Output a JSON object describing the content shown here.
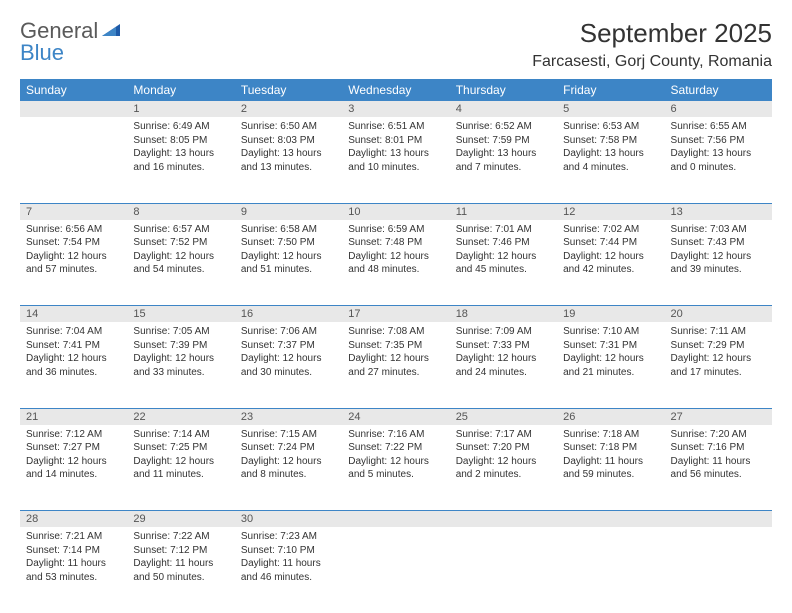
{
  "logo": {
    "text1": "General",
    "text2": "Blue"
  },
  "title": "September 2025",
  "location": "Farcasesti, Gorj County, Romania",
  "colors": {
    "header_bg": "#3d85c6",
    "header_fg": "#ffffff",
    "daynum_bg": "#e8e8e8",
    "text": "#333333",
    "logo_gray": "#5a5a5a",
    "logo_blue": "#3d85c6"
  },
  "weekdays": [
    "Sunday",
    "Monday",
    "Tuesday",
    "Wednesday",
    "Thursday",
    "Friday",
    "Saturday"
  ],
  "weeks": [
    {
      "nums": [
        "",
        "1",
        "2",
        "3",
        "4",
        "5",
        "6"
      ],
      "cells": [
        null,
        {
          "sr": "Sunrise: 6:49 AM",
          "ss": "Sunset: 8:05 PM",
          "dl": "Daylight: 13 hours and 16 minutes."
        },
        {
          "sr": "Sunrise: 6:50 AM",
          "ss": "Sunset: 8:03 PM",
          "dl": "Daylight: 13 hours and 13 minutes."
        },
        {
          "sr": "Sunrise: 6:51 AM",
          "ss": "Sunset: 8:01 PM",
          "dl": "Daylight: 13 hours and 10 minutes."
        },
        {
          "sr": "Sunrise: 6:52 AM",
          "ss": "Sunset: 7:59 PM",
          "dl": "Daylight: 13 hours and 7 minutes."
        },
        {
          "sr": "Sunrise: 6:53 AM",
          "ss": "Sunset: 7:58 PM",
          "dl": "Daylight: 13 hours and 4 minutes."
        },
        {
          "sr": "Sunrise: 6:55 AM",
          "ss": "Sunset: 7:56 PM",
          "dl": "Daylight: 13 hours and 0 minutes."
        }
      ]
    },
    {
      "nums": [
        "7",
        "8",
        "9",
        "10",
        "11",
        "12",
        "13"
      ],
      "cells": [
        {
          "sr": "Sunrise: 6:56 AM",
          "ss": "Sunset: 7:54 PM",
          "dl": "Daylight: 12 hours and 57 minutes."
        },
        {
          "sr": "Sunrise: 6:57 AM",
          "ss": "Sunset: 7:52 PM",
          "dl": "Daylight: 12 hours and 54 minutes."
        },
        {
          "sr": "Sunrise: 6:58 AM",
          "ss": "Sunset: 7:50 PM",
          "dl": "Daylight: 12 hours and 51 minutes."
        },
        {
          "sr": "Sunrise: 6:59 AM",
          "ss": "Sunset: 7:48 PM",
          "dl": "Daylight: 12 hours and 48 minutes."
        },
        {
          "sr": "Sunrise: 7:01 AM",
          "ss": "Sunset: 7:46 PM",
          "dl": "Daylight: 12 hours and 45 minutes."
        },
        {
          "sr": "Sunrise: 7:02 AM",
          "ss": "Sunset: 7:44 PM",
          "dl": "Daylight: 12 hours and 42 minutes."
        },
        {
          "sr": "Sunrise: 7:03 AM",
          "ss": "Sunset: 7:43 PM",
          "dl": "Daylight: 12 hours and 39 minutes."
        }
      ]
    },
    {
      "nums": [
        "14",
        "15",
        "16",
        "17",
        "18",
        "19",
        "20"
      ],
      "cells": [
        {
          "sr": "Sunrise: 7:04 AM",
          "ss": "Sunset: 7:41 PM",
          "dl": "Daylight: 12 hours and 36 minutes."
        },
        {
          "sr": "Sunrise: 7:05 AM",
          "ss": "Sunset: 7:39 PM",
          "dl": "Daylight: 12 hours and 33 minutes."
        },
        {
          "sr": "Sunrise: 7:06 AM",
          "ss": "Sunset: 7:37 PM",
          "dl": "Daylight: 12 hours and 30 minutes."
        },
        {
          "sr": "Sunrise: 7:08 AM",
          "ss": "Sunset: 7:35 PM",
          "dl": "Daylight: 12 hours and 27 minutes."
        },
        {
          "sr": "Sunrise: 7:09 AM",
          "ss": "Sunset: 7:33 PM",
          "dl": "Daylight: 12 hours and 24 minutes."
        },
        {
          "sr": "Sunrise: 7:10 AM",
          "ss": "Sunset: 7:31 PM",
          "dl": "Daylight: 12 hours and 21 minutes."
        },
        {
          "sr": "Sunrise: 7:11 AM",
          "ss": "Sunset: 7:29 PM",
          "dl": "Daylight: 12 hours and 17 minutes."
        }
      ]
    },
    {
      "nums": [
        "21",
        "22",
        "23",
        "24",
        "25",
        "26",
        "27"
      ],
      "cells": [
        {
          "sr": "Sunrise: 7:12 AM",
          "ss": "Sunset: 7:27 PM",
          "dl": "Daylight: 12 hours and 14 minutes."
        },
        {
          "sr": "Sunrise: 7:14 AM",
          "ss": "Sunset: 7:25 PM",
          "dl": "Daylight: 12 hours and 11 minutes."
        },
        {
          "sr": "Sunrise: 7:15 AM",
          "ss": "Sunset: 7:24 PM",
          "dl": "Daylight: 12 hours and 8 minutes."
        },
        {
          "sr": "Sunrise: 7:16 AM",
          "ss": "Sunset: 7:22 PM",
          "dl": "Daylight: 12 hours and 5 minutes."
        },
        {
          "sr": "Sunrise: 7:17 AM",
          "ss": "Sunset: 7:20 PM",
          "dl": "Daylight: 12 hours and 2 minutes."
        },
        {
          "sr": "Sunrise: 7:18 AM",
          "ss": "Sunset: 7:18 PM",
          "dl": "Daylight: 11 hours and 59 minutes."
        },
        {
          "sr": "Sunrise: 7:20 AM",
          "ss": "Sunset: 7:16 PM",
          "dl": "Daylight: 11 hours and 56 minutes."
        }
      ]
    },
    {
      "nums": [
        "28",
        "29",
        "30",
        "",
        "",
        "",
        ""
      ],
      "cells": [
        {
          "sr": "Sunrise: 7:21 AM",
          "ss": "Sunset: 7:14 PM",
          "dl": "Daylight: 11 hours and 53 minutes."
        },
        {
          "sr": "Sunrise: 7:22 AM",
          "ss": "Sunset: 7:12 PM",
          "dl": "Daylight: 11 hours and 50 minutes."
        },
        {
          "sr": "Sunrise: 7:23 AM",
          "ss": "Sunset: 7:10 PM",
          "dl": "Daylight: 11 hours and 46 minutes."
        },
        null,
        null,
        null,
        null
      ]
    }
  ]
}
